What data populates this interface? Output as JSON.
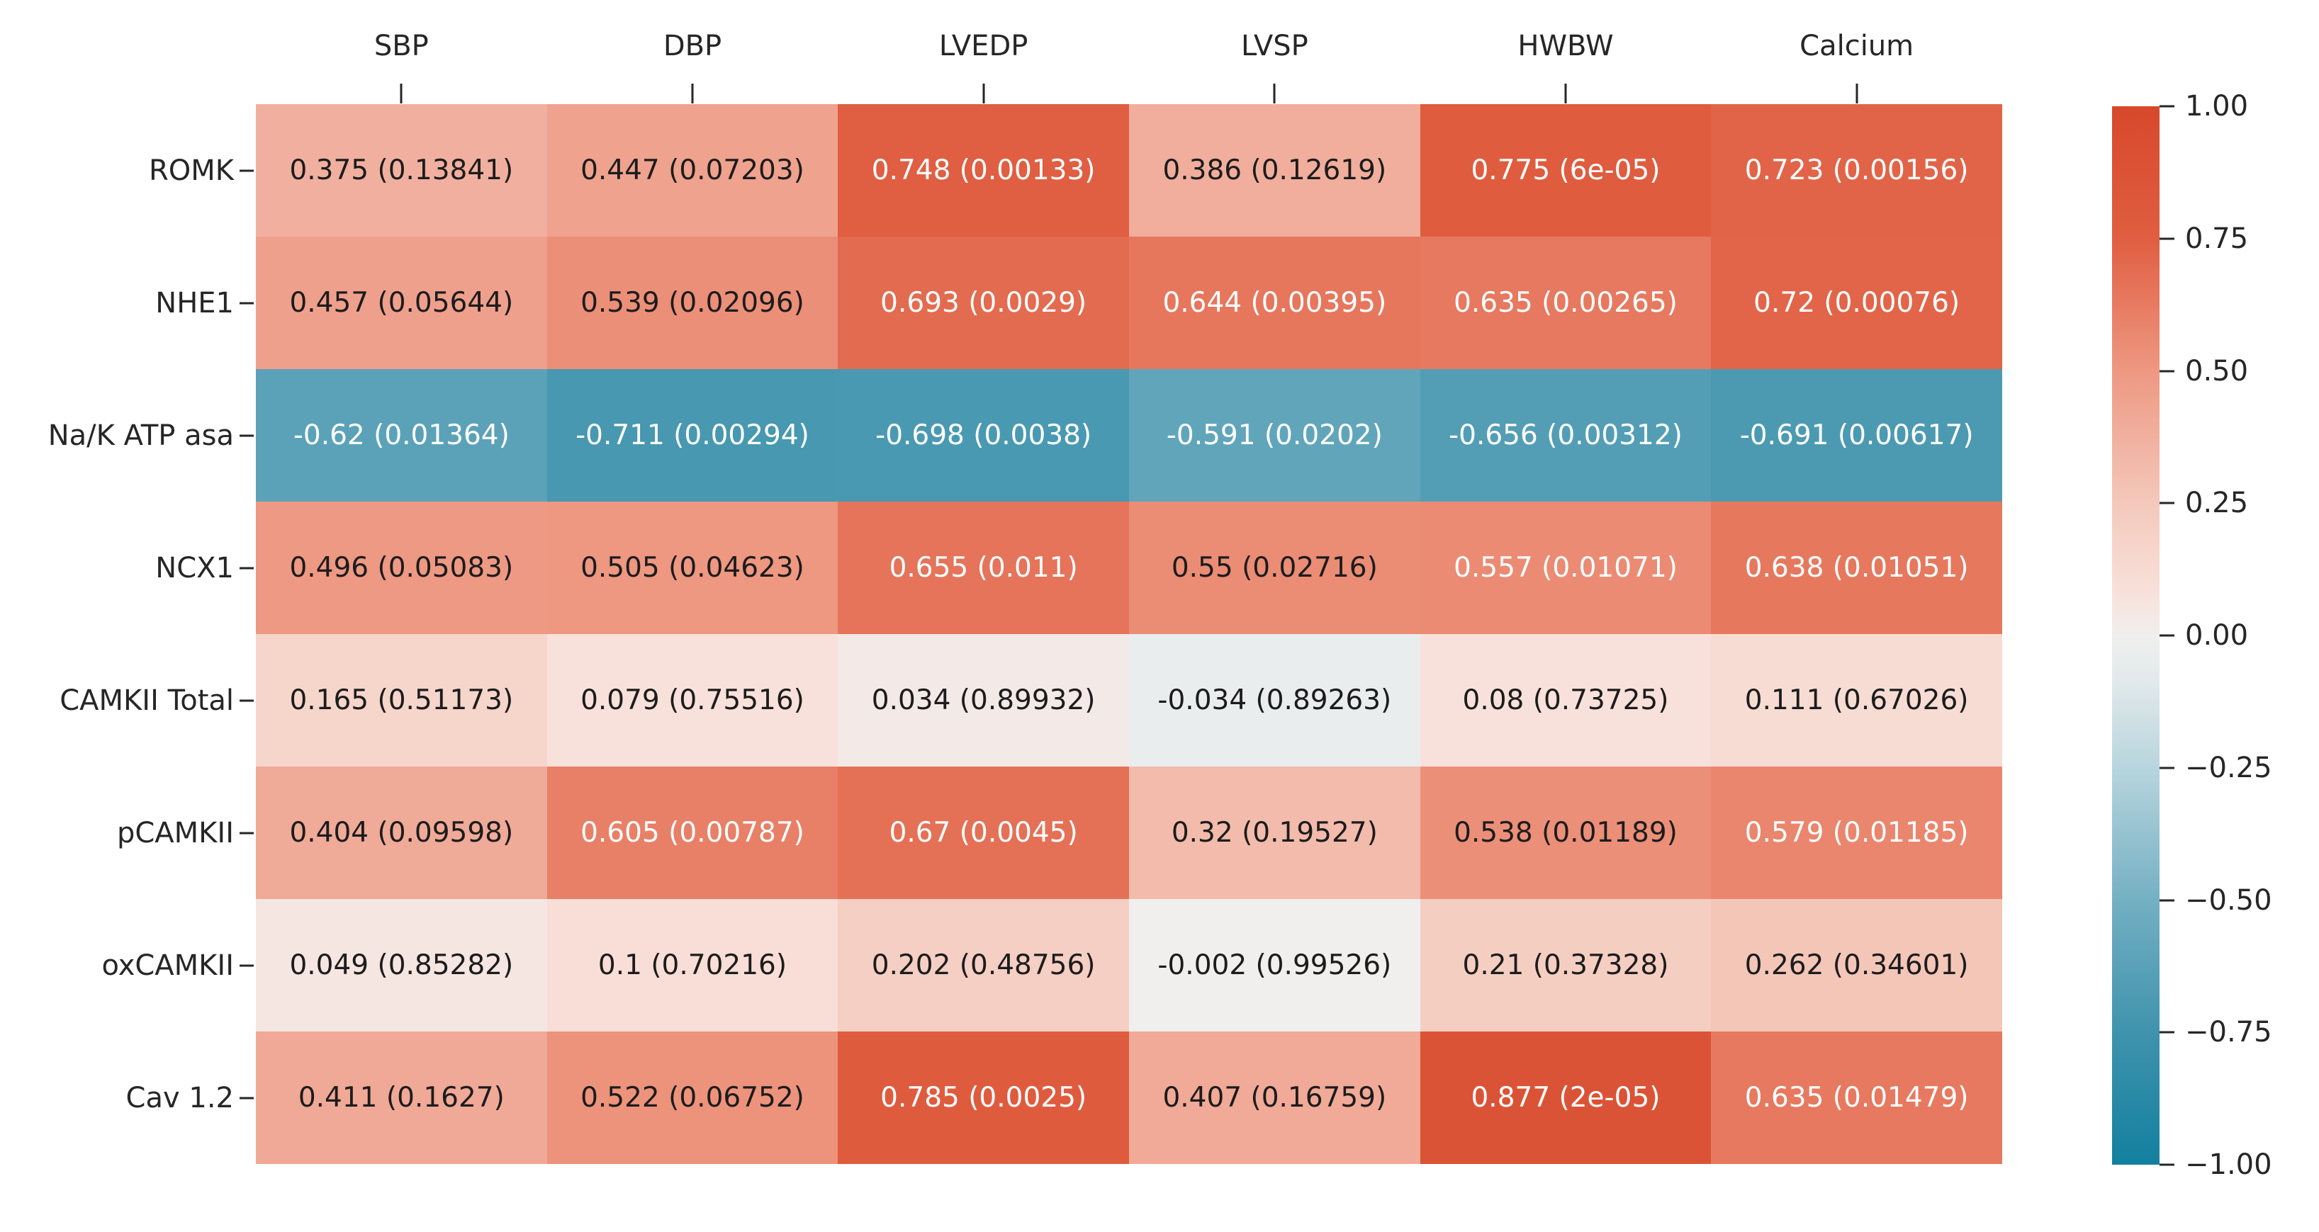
{
  "chart_data": {
    "type": "heatmap",
    "title": "",
    "columns": [
      "SBP",
      "DBP",
      "LVEDP",
      "LVSP",
      "HWBW",
      "Calcium"
    ],
    "rows": [
      "ROMK",
      "NHE1",
      "Na/K ATP asa",
      "NCX1",
      "CAMKII Total",
      "pCAMKII",
      "oxCAMKII",
      "Cav 1.2"
    ],
    "annotation_format": "r (p-value)",
    "cells": [
      [
        {
          "r": "0.375",
          "p": "0.13841"
        },
        {
          "r": "0.447",
          "p": "0.07203"
        },
        {
          "r": "0.748",
          "p": "0.00133"
        },
        {
          "r": "0.386",
          "p": "0.12619"
        },
        {
          "r": "0.775",
          "p": "6e-05"
        },
        {
          "r": "0.723",
          "p": "0.00156"
        }
      ],
      [
        {
          "r": "0.457",
          "p": "0.05644"
        },
        {
          "r": "0.539",
          "p": "0.02096"
        },
        {
          "r": "0.693",
          "p": "0.0029"
        },
        {
          "r": "0.644",
          "p": "0.00395"
        },
        {
          "r": "0.635",
          "p": "0.00265"
        },
        {
          "r": "0.72",
          "p": "0.00076"
        }
      ],
      [
        {
          "r": "-0.62",
          "p": "0.01364"
        },
        {
          "r": "-0.711",
          "p": "0.00294"
        },
        {
          "r": "-0.698",
          "p": "0.0038"
        },
        {
          "r": "-0.591",
          "p": "0.0202"
        },
        {
          "r": "-0.656",
          "p": "0.00312"
        },
        {
          "r": "-0.691",
          "p": "0.00617"
        }
      ],
      [
        {
          "r": "0.496",
          "p": "0.05083"
        },
        {
          "r": "0.505",
          "p": "0.04623"
        },
        {
          "r": "0.655",
          "p": "0.011"
        },
        {
          "r": "0.55",
          "p": "0.02716"
        },
        {
          "r": "0.557",
          "p": "0.01071"
        },
        {
          "r": "0.638",
          "p": "0.01051"
        }
      ],
      [
        {
          "r": "0.165",
          "p": "0.51173"
        },
        {
          "r": "0.079",
          "p": "0.75516"
        },
        {
          "r": "0.034",
          "p": "0.89932"
        },
        {
          "r": "-0.034",
          "p": "0.89263"
        },
        {
          "r": "0.08",
          "p": "0.73725"
        },
        {
          "r": "0.111",
          "p": "0.67026"
        }
      ],
      [
        {
          "r": "0.404",
          "p": "0.09598"
        },
        {
          "r": "0.605",
          "p": "0.00787"
        },
        {
          "r": "0.67",
          "p": "0.0045"
        },
        {
          "r": "0.32",
          "p": "0.19527"
        },
        {
          "r": "0.538",
          "p": "0.01189"
        },
        {
          "r": "0.579",
          "p": "0.01185"
        }
      ],
      [
        {
          "r": "0.049",
          "p": "0.85282"
        },
        {
          "r": "0.1",
          "p": "0.70216"
        },
        {
          "r": "0.202",
          "p": "0.48756"
        },
        {
          "r": "-0.002",
          "p": "0.99526"
        },
        {
          "r": "0.21",
          "p": "0.37328"
        },
        {
          "r": "0.262",
          "p": "0.34601"
        }
      ],
      [
        {
          "r": "0.411",
          "p": "0.1627"
        },
        {
          "r": "0.522",
          "p": "0.06752"
        },
        {
          "r": "0.785",
          "p": "0.0025"
        },
        {
          "r": "0.407",
          "p": "0.16759"
        },
        {
          "r": "0.877",
          "p": "2e-05"
        },
        {
          "r": "0.635",
          "p": "0.01479"
        }
      ]
    ],
    "colorbar": {
      "min": -1.0,
      "max": 1.0,
      "tick_labels": [
        "1.00",
        "0.75",
        "0.50",
        "0.25",
        "0.00",
        "−0.25",
        "−0.50",
        "−0.75",
        "−1.00"
      ],
      "tick_values": [
        1.0,
        0.75,
        0.5,
        0.25,
        0.0,
        -0.25,
        -0.5,
        -0.75,
        -1.0
      ]
    },
    "colors": {
      "positive_max": "#d7482b",
      "negative_max": "#12809f",
      "center": "#f0efee",
      "annotation_dark": "#1c1c1c",
      "annotation_light": "#ffffff",
      "axis_text": "#262626",
      "colormap_anchors": [
        {
          "v": -1.0,
          "c": "#12809f"
        },
        {
          "v": -0.75,
          "c": "#3f93ad"
        },
        {
          "v": -0.5,
          "c": "#74b0c3"
        },
        {
          "v": -0.25,
          "c": "#b8d5de"
        },
        {
          "v": -0.08,
          "c": "#e3eaec"
        },
        {
          "v": 0.0,
          "c": "#f0efee"
        },
        {
          "v": 0.08,
          "c": "#f8e1da"
        },
        {
          "v": 0.25,
          "c": "#f4c8bb"
        },
        {
          "v": 0.5,
          "c": "#ee9882"
        },
        {
          "v": 0.75,
          "c": "#e05e41"
        },
        {
          "v": 1.0,
          "c": "#d7482b"
        }
      ],
      "white_text_threshold": 0.553
    },
    "legend_position": "right",
    "grid": false
  }
}
